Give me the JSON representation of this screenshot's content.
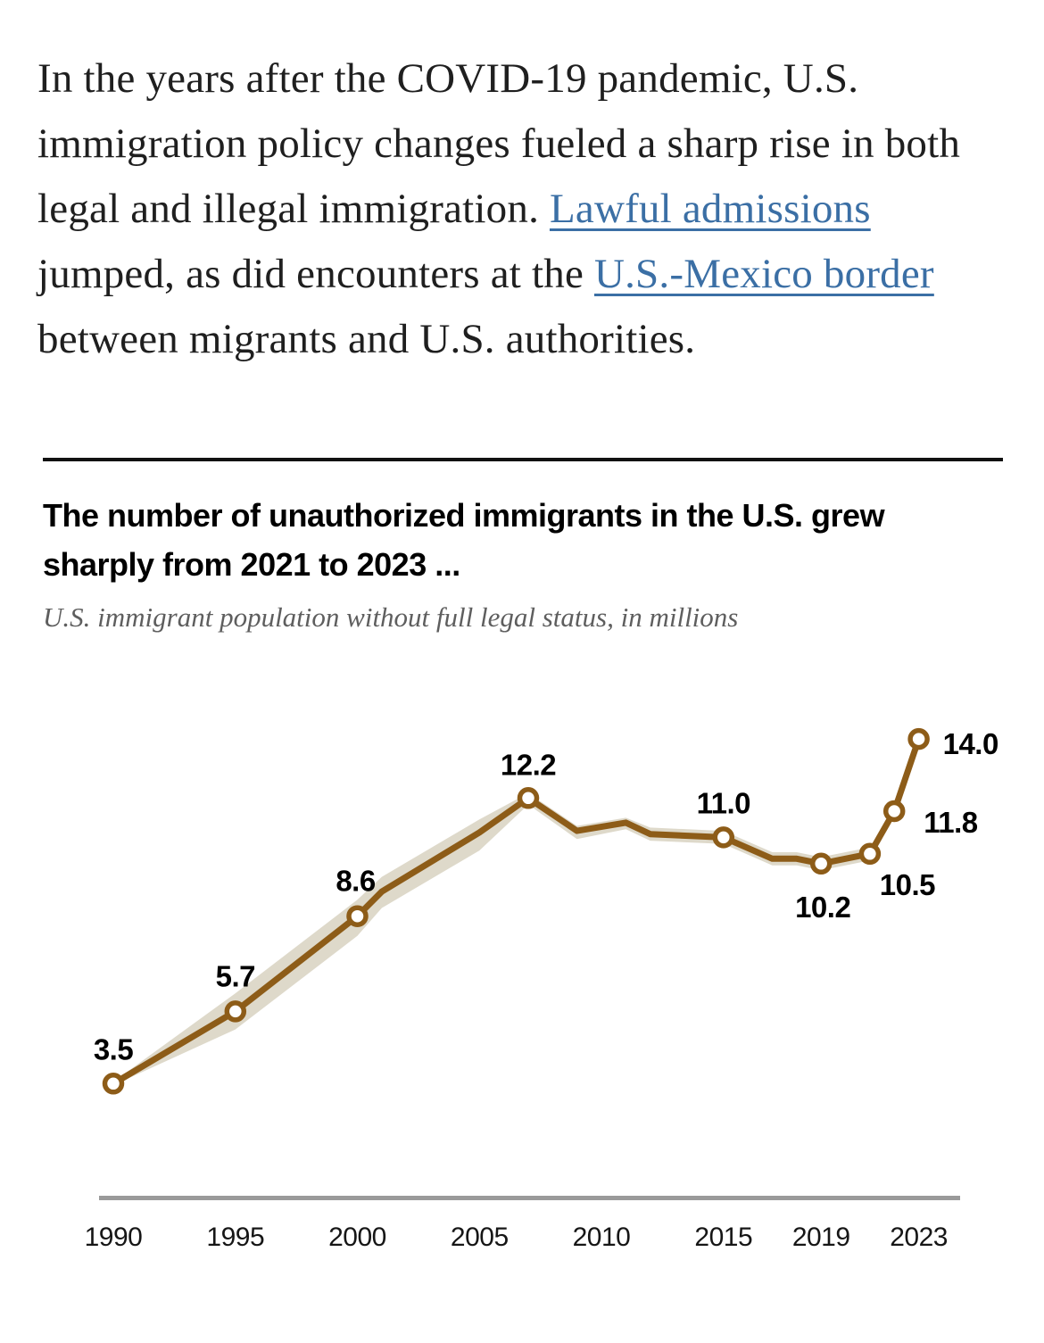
{
  "article": {
    "link_color": "#3b6fa5",
    "paragraph_segments": [
      {
        "type": "text",
        "text": "In the years after the COVID-19 pandemic, U.S. immigration policy changes fueled a sharp rise in both legal and illegal immigration. "
      },
      {
        "type": "link",
        "text": "Lawful admissions"
      },
      {
        "type": "text",
        "text": " jumped, as did encounters at the "
      },
      {
        "type": "link",
        "text": "U.S.-Mexico border"
      },
      {
        "type": "text",
        "text": " between migrants and U.S. authorities."
      }
    ]
  },
  "chart_data": {
    "type": "line",
    "title": "The number of unauthorized immigrants in the U.S. grew sharply from 2021 to 2023 ...",
    "subtitle": "U.S. immigrant population without full legal status, in millions",
    "unit": "millions",
    "x_domain": [
      1990,
      2023
    ],
    "y_domain": [
      0,
      16
    ],
    "grid": "off",
    "x_tick_labels": [
      "1990",
      "1995",
      "2000",
      "2005",
      "2010",
      "2015",
      "2019",
      "2023"
    ],
    "points": [
      [
        1990,
        3.5
      ],
      [
        1995,
        5.7
      ],
      [
        2000,
        8.6
      ],
      [
        2001,
        9.35
      ],
      [
        2005,
        11.15
      ],
      [
        2007,
        12.2
      ],
      [
        2009,
        11.2
      ],
      [
        2011,
        11.45
      ],
      [
        2012,
        11.1
      ],
      [
        2015,
        11.0
      ],
      [
        2017,
        10.35
      ],
      [
        2018,
        10.35
      ],
      [
        2019,
        10.2
      ],
      [
        2020,
        10.35
      ],
      [
        2021,
        10.5
      ],
      [
        2022,
        11.8
      ],
      [
        2023,
        14.0
      ]
    ],
    "labeled_points": [
      {
        "year": 1990,
        "value": 3.5,
        "label": "3.5"
      },
      {
        "year": 1995,
        "value": 5.7,
        "label": "5.7"
      },
      {
        "year": 2000,
        "value": 8.6,
        "label": "8.6"
      },
      {
        "year": 2007,
        "value": 12.2,
        "label": "12.2"
      },
      {
        "year": 2015,
        "value": 11.0,
        "label": "11.0"
      },
      {
        "year": 2019,
        "value": 10.2,
        "label": "10.2"
      },
      {
        "year": 2021,
        "value": 10.5,
        "label": "10.5"
      },
      {
        "year": 2022,
        "value": 11.8,
        "label": "11.8"
      },
      {
        "year": 2023,
        "value": 14.0,
        "label": "14.0"
      }
    ],
    "band": [
      [
        1990,
        3.45,
        3.55
      ],
      [
        1995,
        5.15,
        6.25
      ],
      [
        2000,
        8.0,
        9.1
      ],
      [
        2001,
        8.85,
        9.8
      ],
      [
        2005,
        10.6,
        11.55
      ],
      [
        2007,
        12.0,
        12.35
      ],
      [
        2009,
        10.95,
        11.35
      ],
      [
        2011,
        11.25,
        11.6
      ],
      [
        2012,
        10.9,
        11.3
      ],
      [
        2015,
        10.8,
        11.2
      ],
      [
        2017,
        10.15,
        10.55
      ],
      [
        2018,
        10.15,
        10.55
      ],
      [
        2019,
        10.0,
        10.4
      ],
      [
        2020,
        10.15,
        10.55
      ],
      [
        2021,
        10.3,
        10.7
      ],
      [
        2021.5,
        10.95,
        11.3
      ]
    ],
    "colors": {
      "line": "#8d5c18",
      "band": "#ded9ca",
      "marker_fill": "#ffffff",
      "axis": "#9a9a9a",
      "value_label": "#000000",
      "tick_label": "#161616"
    }
  }
}
